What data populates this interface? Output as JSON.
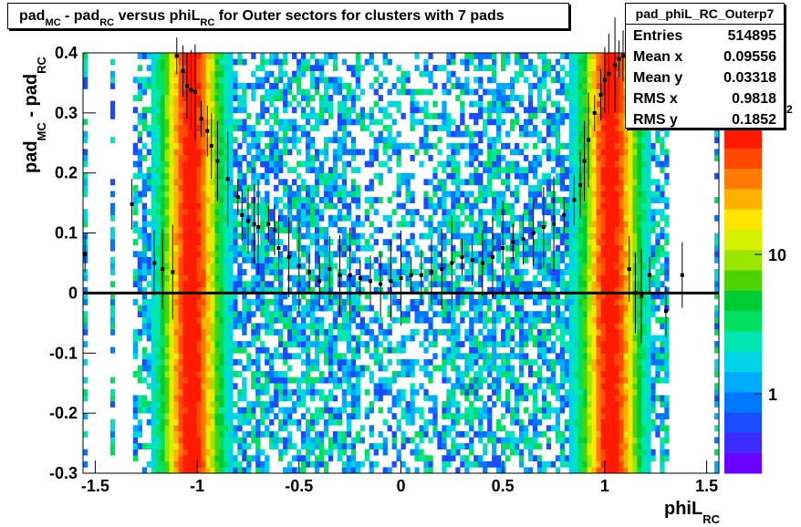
{
  "chart_data": {
    "type": "heatmap",
    "title_parts": {
      "p1": "pad",
      "s1": "MC",
      "p2": " - pad",
      "s2": "RC",
      "p3": " versus phiL",
      "s3": "RC",
      "p4": " for Outer sectors for clusters with 7 pads"
    },
    "xlabel": {
      "main": "phiL",
      "sub": "RC"
    },
    "ylabel": {
      "p1": "pad",
      "s1": "MC",
      "p2": " - pad",
      "s2": "RC"
    },
    "xlim": [
      -1.56,
      1.56
    ],
    "ylim": [
      -0.3,
      0.4
    ],
    "x_ticks": [
      "-1.5",
      "-1",
      "-0.5",
      "0",
      "0.5",
      "1",
      "1.5"
    ],
    "y_ticks": [
      "-0.3",
      "-0.2",
      "-0.1",
      "0",
      "0.1",
      "0.2",
      "0.3",
      "0.4"
    ],
    "z_scale": "log",
    "z_ticks": [
      "1",
      "10",
      "10"
    ],
    "z_tick_exponent": "2",
    "profile_points": [
      {
        "x": -1.55,
        "y": 0.065
      },
      {
        "x": -1.32,
        "y": 0.148
      },
      {
        "x": -1.21,
        "y": 0.05
      },
      {
        "x": -1.17,
        "y": 0.04
      },
      {
        "x": -1.12,
        "y": 0.035
      },
      {
        "x": -1.1,
        "y": 0.395
      },
      {
        "x": -1.07,
        "y": 0.37
      },
      {
        "x": -1.05,
        "y": 0.345
      },
      {
        "x": -1.03,
        "y": 0.338
      },
      {
        "x": -1.01,
        "y": 0.335
      },
      {
        "x": -0.98,
        "y": 0.29
      },
      {
        "x": -0.95,
        "y": 0.27
      },
      {
        "x": -0.93,
        "y": 0.245
      },
      {
        "x": -0.9,
        "y": 0.22
      },
      {
        "x": -0.85,
        "y": 0.19
      },
      {
        "x": -0.8,
        "y": 0.16
      },
      {
        "x": -0.78,
        "y": 0.13
      },
      {
        "x": -0.75,
        "y": 0.12
      },
      {
        "x": -0.72,
        "y": 0.115
      },
      {
        "x": -0.7,
        "y": 0.11
      },
      {
        "x": -0.65,
        "y": 0.115
      },
      {
        "x": -0.62,
        "y": 0.105
      },
      {
        "x": -0.6,
        "y": 0.075
      },
      {
        "x": -0.55,
        "y": 0.06
      },
      {
        "x": -0.5,
        "y": 0.045
      },
      {
        "x": -0.45,
        "y": 0.035
      },
      {
        "x": -0.4,
        "y": 0.02
      },
      {
        "x": -0.35,
        "y": 0.04
      },
      {
        "x": -0.3,
        "y": 0.03
      },
      {
        "x": -0.25,
        "y": 0.03
      },
      {
        "x": -0.2,
        "y": 0.025
      },
      {
        "x": -0.15,
        "y": 0.02
      },
      {
        "x": -0.1,
        "y": 0.015
      },
      {
        "x": -0.05,
        "y": 0.02
      },
      {
        "x": 0.0,
        "y": 0.025
      },
      {
        "x": 0.05,
        "y": 0.03
      },
      {
        "x": 0.1,
        "y": 0.03
      },
      {
        "x": 0.15,
        "y": 0.035
      },
      {
        "x": 0.2,
        "y": 0.04
      },
      {
        "x": 0.25,
        "y": 0.05
      },
      {
        "x": 0.3,
        "y": 0.06
      },
      {
        "x": 0.35,
        "y": 0.055
      },
      {
        "x": 0.4,
        "y": 0.05
      },
      {
        "x": 0.45,
        "y": 0.06
      },
      {
        "x": 0.5,
        "y": 0.075
      },
      {
        "x": 0.55,
        "y": 0.085
      },
      {
        "x": 0.6,
        "y": 0.09
      },
      {
        "x": 0.65,
        "y": 0.1
      },
      {
        "x": 0.7,
        "y": 0.11
      },
      {
        "x": 0.75,
        "y": 0.115
      },
      {
        "x": 0.8,
        "y": 0.13
      },
      {
        "x": 0.85,
        "y": 0.155
      },
      {
        "x": 0.88,
        "y": 0.18
      },
      {
        "x": 0.9,
        "y": 0.22
      },
      {
        "x": 0.92,
        "y": 0.255
      },
      {
        "x": 0.95,
        "y": 0.3
      },
      {
        "x": 0.98,
        "y": 0.33
      },
      {
        "x": 1.0,
        "y": 0.355
      },
      {
        "x": 1.02,
        "y": 0.365
      },
      {
        "x": 1.05,
        "y": 0.38
      },
      {
        "x": 1.07,
        "y": 0.39
      },
      {
        "x": 1.09,
        "y": 0.395
      },
      {
        "x": 1.12,
        "y": 0.04
      },
      {
        "x": 1.15,
        "y": 0.0
      },
      {
        "x": 1.18,
        "y": -0.005
      },
      {
        "x": 1.22,
        "y": 0.03
      },
      {
        "x": 1.3,
        "y": -0.03
      },
      {
        "x": 1.38,
        "y": 0.03
      }
    ],
    "mean_line_y": 0.0
  },
  "stats": {
    "name": "pad_phiL_RC_Outerp7",
    "rows": [
      {
        "label": "Entries",
        "value": "514895"
      },
      {
        "label": "Mean x",
        "value": "0.09556"
      },
      {
        "label": "Mean y",
        "value": "0.03318"
      },
      {
        "label": "RMS x",
        "value": "0.9818"
      },
      {
        "label": "RMS y",
        "value": "0.1852"
      }
    ]
  },
  "colors": {
    "heat_low": "#1a4cff",
    "heat_mid": "#00cc33",
    "heat_high": "#ff1a00",
    "marker": "#000000"
  }
}
